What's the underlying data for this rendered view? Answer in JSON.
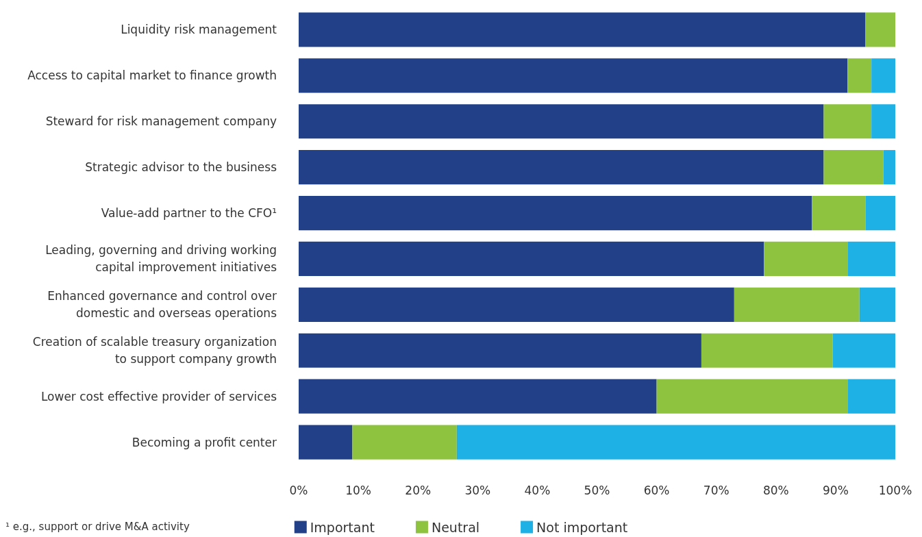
{
  "chart_data": {
    "type": "bar",
    "orientation": "horizontal",
    "stacked": true,
    "categories": [
      "Liquidity risk management",
      "Access to capital market to finance growth",
      "Steward for risk management company",
      "Strategic advisor to the business",
      "Value-add partner to the CFO¹",
      "Leading, governing and driving working\ncapital improvement initiatives",
      "Enhanced governance and control over\ndomestic and overseas operations",
      "Creation of scalable treasury organization\nto support company growth",
      "Lower cost effective provider of services",
      "Becoming a profit center"
    ],
    "series": [
      {
        "name": "Important",
        "color": "#224088",
        "values": [
          95,
          92,
          88,
          88,
          86,
          78,
          73,
          67.5,
          60,
          9
        ]
      },
      {
        "name": "Neutral",
        "color": "#8dc33f",
        "values": [
          5,
          4,
          8,
          10,
          9,
          14,
          21,
          22,
          32,
          17.5
        ]
      },
      {
        "name": "Not important",
        "color": "#1eb1e6",
        "values": [
          0,
          4,
          4,
          2,
          5,
          8,
          6,
          10.5,
          8,
          73.5
        ]
      }
    ],
    "xlim": [
      0,
      100
    ],
    "xticks": [
      {
        "value": 0,
        "label": "0%"
      },
      {
        "value": 10,
        "label": "10%"
      },
      {
        "value": 20,
        "label": "20%"
      },
      {
        "value": 30,
        "label": "30%"
      },
      {
        "value": 40,
        "label": "40%"
      },
      {
        "value": 50,
        "label": "50%"
      },
      {
        "value": 60,
        "label": "60%"
      },
      {
        "value": 70,
        "label": "70%"
      },
      {
        "value": 80,
        "label": "80%"
      },
      {
        "value": 90,
        "label": "90%"
      },
      {
        "value": 100,
        "label": "100%"
      }
    ],
    "grid": false,
    "legend": "bottom",
    "annotations": [
      "¹ e.g., support or drive M&A activity"
    ]
  }
}
